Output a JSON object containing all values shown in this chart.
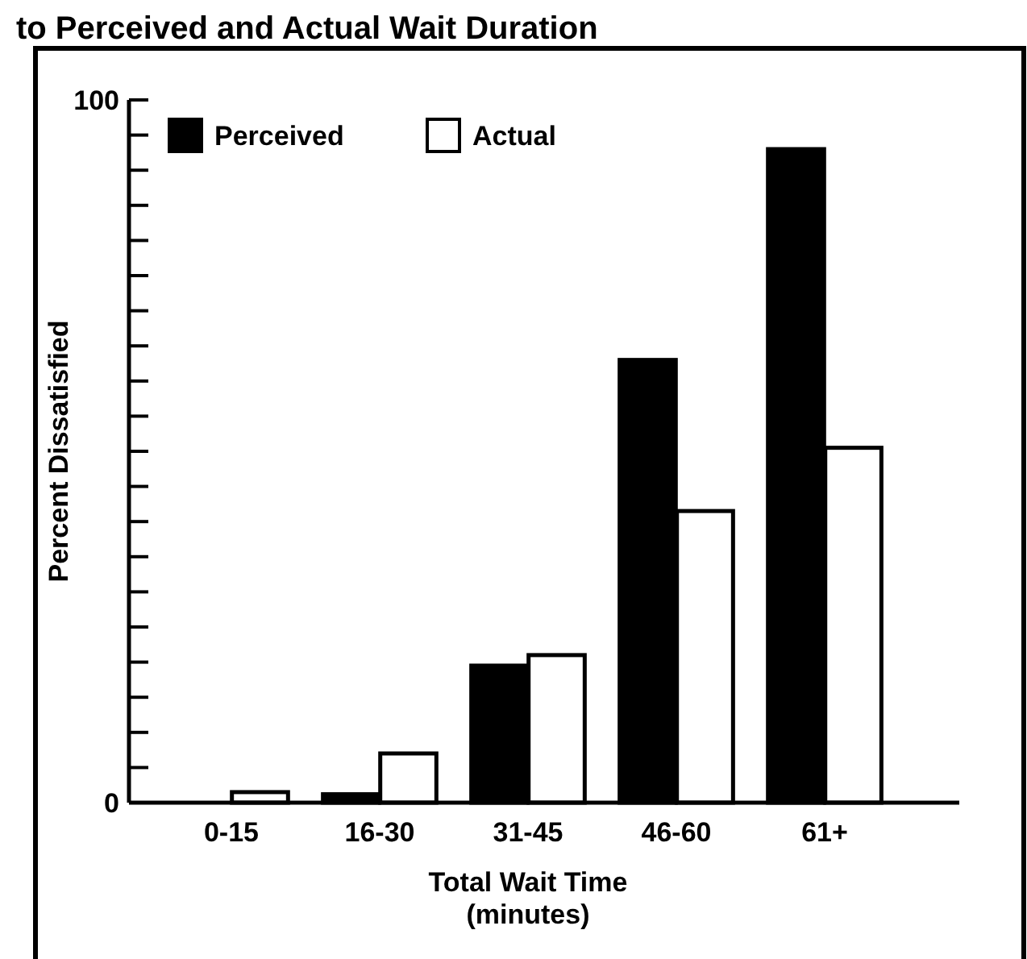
{
  "chart_data": {
    "type": "bar",
    "title": "to Perceived and Actual Wait Duration",
    "xlabel": "Total Wait Time\n(minutes)",
    "ylabel": "Percent Dissatisfied",
    "categories": [
      "0-15",
      "16-30",
      "31-45",
      "46-60",
      "61+"
    ],
    "series": [
      {
        "name": "Perceived",
        "color": "#000000",
        "values": [
          0,
          1.2,
          19.5,
          63,
          93
        ]
      },
      {
        "name": "Actual",
        "color": "#ffffff",
        "values": [
          1.5,
          7,
          21,
          41.5,
          50.5
        ]
      }
    ],
    "ylim": [
      0,
      100
    ],
    "yticks": [
      0,
      {
        "value": 5,
        "label": null
      },
      {
        "value": 10,
        "label": null
      },
      {
        "value": 15,
        "label": null
      },
      {
        "value": 20,
        "label": null
      },
      {
        "value": 25,
        "label": null
      },
      {
        "value": 30,
        "label": null
      },
      {
        "value": 35,
        "label": null
      },
      {
        "value": 40,
        "label": null
      },
      {
        "value": 45,
        "label": null
      },
      {
        "value": 50,
        "label": null
      },
      {
        "value": 55,
        "label": null
      },
      {
        "value": 60,
        "label": null
      },
      {
        "value": 65,
        "label": null
      },
      {
        "value": 70,
        "label": null
      },
      {
        "value": 75,
        "label": null
      },
      {
        "value": 80,
        "label": null
      },
      {
        "value": 85,
        "label": null
      },
      {
        "value": 90,
        "label": null
      },
      {
        "value": 95,
        "label": null
      },
      100
    ],
    "legend": "top left",
    "grid": false
  }
}
